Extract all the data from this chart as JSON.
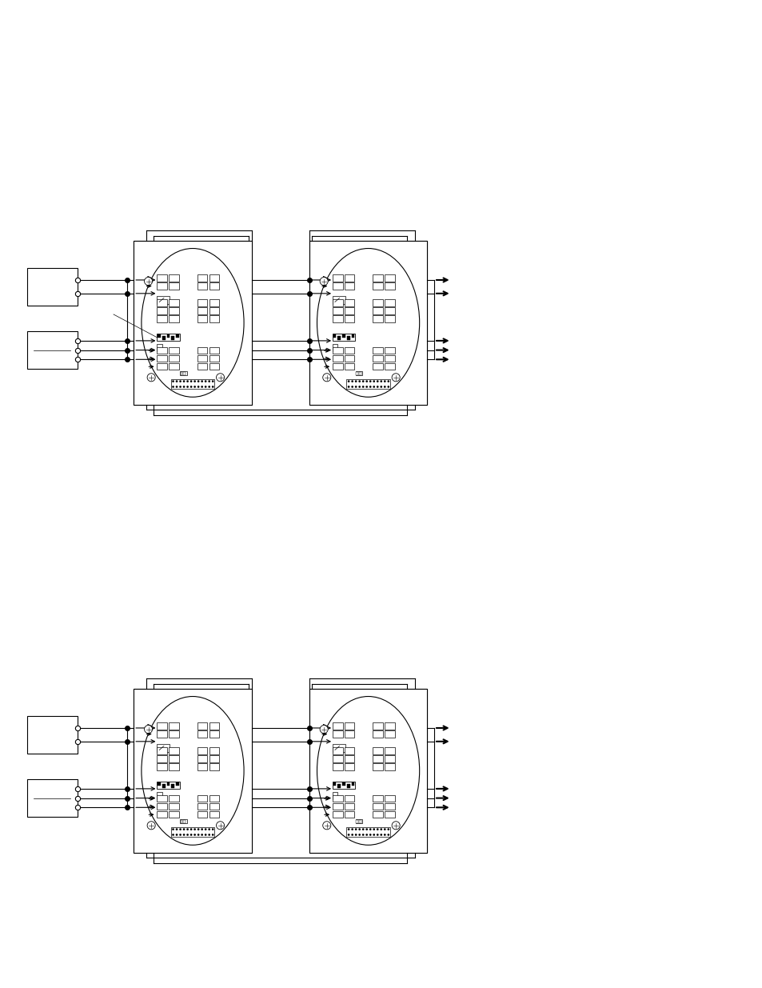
{
  "bg_color": "#ffffff",
  "fig_width": 9.54,
  "fig_height": 12.35,
  "lw": 0.8,
  "lw_thin": 0.5,
  "lw_thick": 1.5,
  "dot_size": 4.0,
  "open_dot_size": 4.5,
  "diagram1_by": 7.2,
  "diagram2_by": 1.6,
  "scale": 0.72
}
